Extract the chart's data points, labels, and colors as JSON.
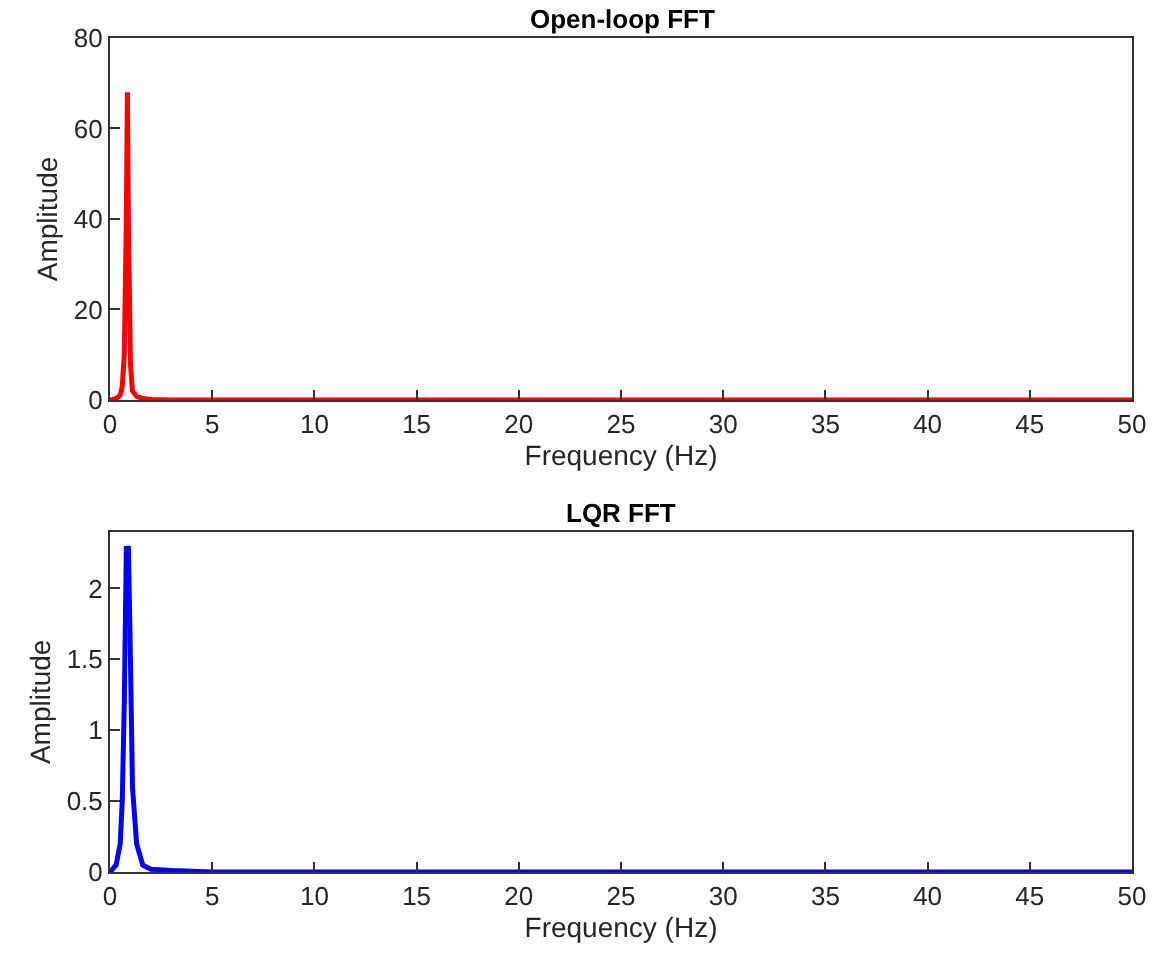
{
  "chart_data": [
    {
      "type": "line",
      "title": "Open-loop FFT",
      "xlabel": "Frequency (Hz)",
      "ylabel": "Amplitude",
      "x": [
        0,
        0.3,
        0.5,
        0.6,
        0.7,
        0.8,
        0.85,
        0.9,
        1.0,
        1.1,
        1.3,
        1.6,
        2,
        3,
        5,
        10,
        20,
        30,
        40,
        50
      ],
      "series": [
        {
          "color": "#ff0000",
          "values": [
            0,
            0.3,
            1,
            3,
            10,
            40,
            68,
            40,
            8,
            2,
            0.8,
            0.3,
            0.1,
            0,
            0,
            0,
            0,
            0,
            0,
            0
          ]
        }
      ],
      "xlim": [
        0,
        50
      ],
      "xticks": [
        0,
        5,
        10,
        15,
        20,
        25,
        30,
        35,
        40,
        45,
        50
      ],
      "ylim": [
        0,
        80
      ],
      "yticks": [
        0,
        20,
        40,
        60,
        80
      ],
      "marker": "none",
      "line_style": "solid"
    },
    {
      "type": "line",
      "title": "LQR FFT",
      "xlabel": "Frequency (Hz)",
      "ylabel": "Amplitude",
      "x": [
        0,
        0.3,
        0.5,
        0.6,
        0.7,
        0.8,
        0.85,
        0.9,
        1.0,
        1.1,
        1.3,
        1.6,
        2,
        3,
        5,
        10,
        20,
        30,
        40,
        50
      ],
      "series": [
        {
          "color": "#0000ff",
          "values": [
            0,
            0.05,
            0.2,
            0.5,
            1.2,
            2.3,
            null,
            2.3,
            1.5,
            0.6,
            0.2,
            0.05,
            0.02,
            0.01,
            0,
            0,
            0,
            0,
            0,
            0
          ]
        }
      ],
      "xlim": [
        0,
        50
      ],
      "xticks": [
        0,
        5,
        10,
        15,
        20,
        25,
        30,
        35,
        40,
        45,
        50
      ],
      "ylim": [
        0,
        2.4
      ],
      "yticks": [
        0,
        0.5,
        1,
        1.5,
        2
      ],
      "marker": "none",
      "line_style": "solid"
    }
  ]
}
